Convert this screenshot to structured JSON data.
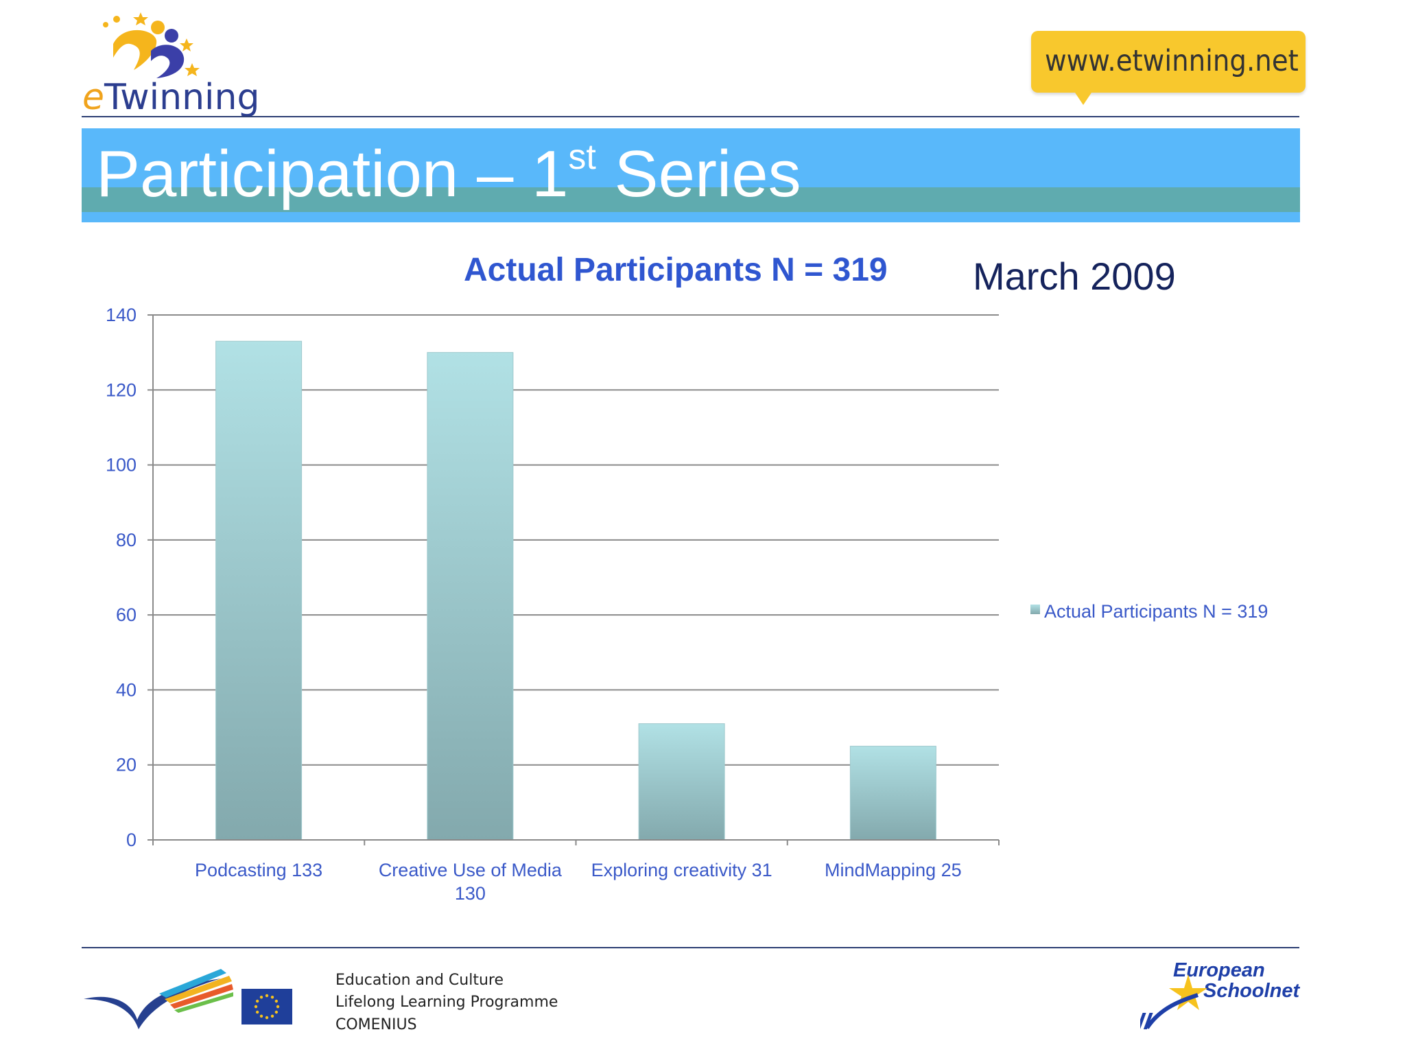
{
  "header": {
    "logo_text": "eTwinning",
    "url": "www.etwinning.net"
  },
  "slide": {
    "title_main": "Participation – 1",
    "title_sup": "st",
    "title_end": " Series"
  },
  "chart_data": {
    "type": "bar",
    "title": "Actual Participants N = 319",
    "date_label": "March 2009",
    "categories": [
      "Podcasting 133",
      "Creative Use of Media 130",
      "Exploring creativity 31",
      "MindMapping 25"
    ],
    "category_lines": [
      [
        "Podcasting 133"
      ],
      [
        "Creative Use of Media",
        "130"
      ],
      [
        "Exploring creativity 31"
      ],
      [
        "MindMapping 25"
      ]
    ],
    "series": [
      {
        "name": "Actual Participants N = 319",
        "values": [
          133,
          130,
          31,
          25
        ]
      }
    ],
    "ylim": [
      0,
      140
    ],
    "yticks": [
      0,
      20,
      40,
      60,
      80,
      100,
      120,
      140
    ],
    "grid": true,
    "legend_position": "right",
    "colors": {
      "bar_top": "#b1e1e5",
      "bar_bottom": "#83a9ad",
      "grid": "#8a8a8a",
      "text": "#3a59c8"
    }
  },
  "footer": {
    "line1": "Education and Culture",
    "line2": "Lifelong Learning Programme",
    "line3": "COMENIUS",
    "esn_line1": "European",
    "esn_line2": "Schoolnet"
  },
  "colors": {
    "title_band": "#59b8fa",
    "title_band_stripe": "#5fabaf",
    "url_bubble": "#f8c82d",
    "chart_title": "#2f56d0"
  }
}
